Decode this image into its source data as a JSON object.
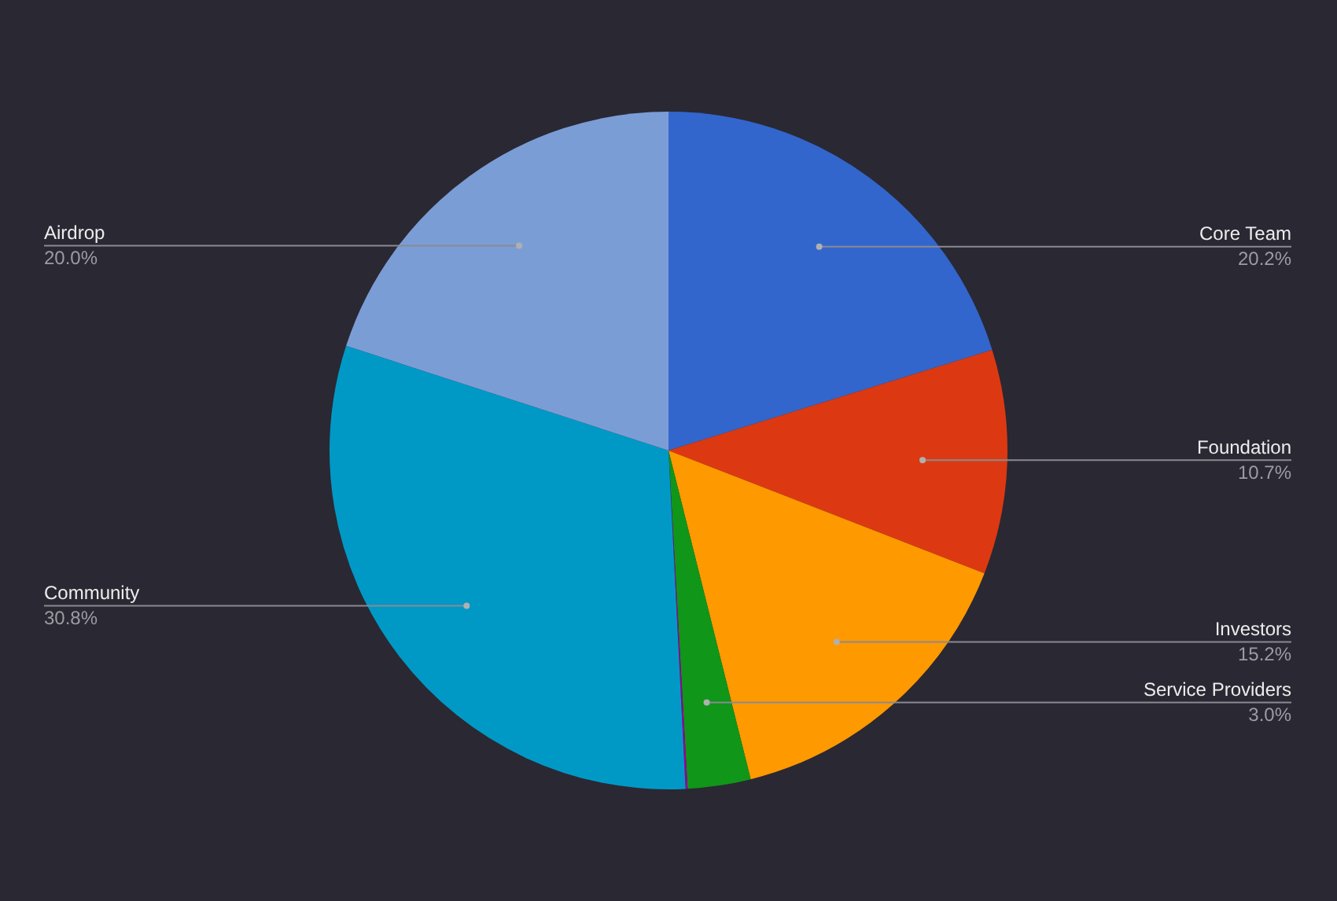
{
  "chart_data": {
    "type": "pie",
    "categories": [
      "Core Team",
      "Foundation",
      "Investors",
      "Service Providers",
      null,
      "Community",
      "Airdrop"
    ],
    "values": [
      20.2,
      10.7,
      15.2,
      3.0,
      0.1,
      30.8,
      20.0
    ],
    "colors": [
      "#3366cc",
      "#dc3912",
      "#ff9900",
      "#109618",
      "#990099",
      "#0099c6",
      "#7b9dd6"
    ],
    "value_labels": [
      "20.2%",
      "10.7%",
      "15.2%",
      "3.0%",
      null,
      "30.8%",
      "20.0%"
    ]
  }
}
